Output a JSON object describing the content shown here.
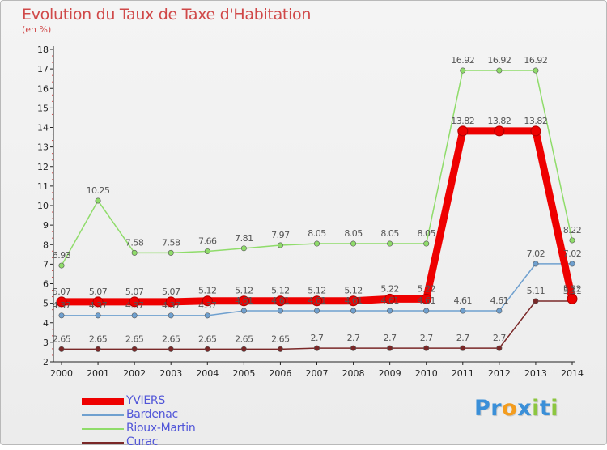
{
  "header": {
    "title": "Evolution du Taux de Taxe d'Habitation",
    "subtitle": "(en %)"
  },
  "brand": {
    "letters": [
      {
        "ch": "P",
        "color": "#3a8fd8"
      },
      {
        "ch": "r",
        "color": "#3a8fd8"
      },
      {
        "ch": "o",
        "color": "#f39c1e"
      },
      {
        "ch": "x",
        "color": "#3a8fd8"
      },
      {
        "ch": "i",
        "color": "#8cc63f"
      },
      {
        "ch": "t",
        "color": "#3a8fd8"
      },
      {
        "ch": "i",
        "color": "#8cc63f"
      }
    ]
  },
  "chart_data": {
    "type": "line",
    "title": "Evolution du Taux de Taxe d'Habitation",
    "subtitle": "(en %)",
    "x": [
      "2000",
      "2001",
      "2002",
      "2003",
      "2004",
      "2005",
      "2006",
      "2007",
      "2008",
      "2009",
      "2010",
      "2011",
      "2012",
      "2013",
      "2014"
    ],
    "yticks": [
      2,
      3,
      4,
      5,
      6,
      7,
      8,
      9,
      10,
      11,
      12,
      13,
      14,
      15,
      16,
      17,
      18
    ],
    "ylim": [
      2,
      18
    ],
    "grid": false,
    "legend_position": "bottom-left",
    "series": [
      {
        "name": "YVIERS",
        "color": "#ee0000",
        "width": 9,
        "values": [
          5.07,
          5.07,
          5.07,
          5.07,
          5.12,
          5.12,
          5.12,
          5.12,
          5.12,
          5.22,
          5.22,
          13.82,
          13.82,
          13.82,
          5.22
        ],
        "labels": [
          "5.07",
          "5.07",
          "5.07",
          "5.07",
          "5.12",
          "5.12",
          "5.12",
          "5.12",
          "5.12",
          "5.22",
          "5.22",
          "13.82",
          "13.82",
          "13.82",
          "5.22"
        ]
      },
      {
        "name": "Bardenac",
        "color": "#6fa0cf",
        "width": 1.5,
        "values": [
          4.37,
          4.37,
          4.37,
          4.37,
          4.37,
          4.61,
          4.61,
          4.61,
          4.61,
          4.61,
          4.61,
          4.61,
          4.61,
          7.02,
          7.02
        ],
        "labels": [
          "4.37",
          "4.37",
          "4.37",
          "4.37",
          "4.37",
          "4.61",
          "4.61",
          "4.61",
          "4.61",
          "4.61",
          "4.61",
          "4.61",
          "4.61",
          "7.02",
          "7.02"
        ]
      },
      {
        "name": "Rioux-Martin",
        "color": "#8fdc6a",
        "width": 1.5,
        "values": [
          6.93,
          10.25,
          7.58,
          7.58,
          7.66,
          7.81,
          7.97,
          8.05,
          8.05,
          8.05,
          8.05,
          16.92,
          16.92,
          16.92,
          8.22
        ],
        "labels": [
          "6.93",
          "10.25",
          "7.58",
          "7.58",
          "7.66",
          "7.81",
          "7.97",
          "8.05",
          "8.05",
          "8.05",
          "8.05",
          "16.92",
          "16.92",
          "16.92",
          "8.22"
        ]
      },
      {
        "name": "Curac",
        "color": "#7a2828",
        "width": 1.5,
        "values": [
          2.65,
          2.65,
          2.65,
          2.65,
          2.65,
          2.65,
          2.65,
          2.7,
          2.7,
          2.7,
          2.7,
          2.7,
          2.7,
          5.11,
          5.11
        ],
        "labels": [
          "2.65",
          "2.65",
          "2.65",
          "2.65",
          "2.65",
          "2.65",
          "2.65",
          "2.7",
          "2.7",
          "2.7",
          "2.7",
          "2.7",
          "2.7",
          "5.11",
          "5.11"
        ]
      }
    ]
  }
}
